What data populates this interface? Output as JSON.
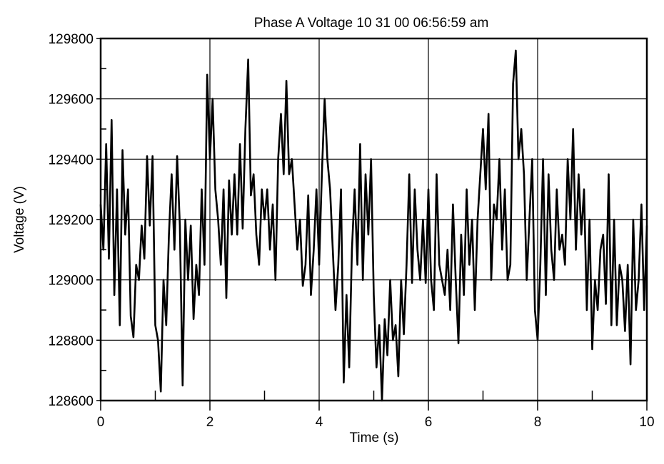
{
  "chart_data": {
    "type": "line",
    "title": "Phase A Voltage 10 31 00 06:56:59 am",
    "xlabel": "Time (s)",
    "ylabel": "Voltage (V)",
    "xlim": [
      0,
      10
    ],
    "ylim": [
      128600,
      129800
    ],
    "xticks": [
      0,
      2,
      4,
      6,
      8,
      10
    ],
    "xtick_labels": [
      "0",
      "2",
      "4",
      "6",
      "8",
      "10"
    ],
    "yticks": [
      128600,
      128800,
      129000,
      129200,
      129400,
      129600,
      129800
    ],
    "ytick_labels": [
      "128600",
      "128800",
      "129000",
      "129200",
      "129400",
      "129600",
      "129800"
    ],
    "grid": true,
    "line_color": "#000000",
    "x_step": 0.05,
    "series": [
      {
        "name": "Phase A Voltage",
        "values": [
          129250,
          129100,
          129450,
          129070,
          129530,
          128950,
          129300,
          128850,
          129430,
          129150,
          129300,
          128880,
          128810,
          129050,
          129000,
          129180,
          129070,
          129410,
          129180,
          129410,
          128850,
          128800,
          128630,
          129000,
          128850,
          129150,
          129350,
          129100,
          129410,
          129180,
          128650,
          129200,
          129000,
          129180,
          128870,
          129050,
          128950,
          129300,
          129050,
          129680,
          129400,
          129600,
          129300,
          129200,
          129050,
          129300,
          128940,
          129330,
          129150,
          129350,
          129150,
          129450,
          129170,
          129500,
          129730,
          129280,
          129350,
          129150,
          129050,
          129300,
          129200,
          129300,
          129100,
          129250,
          129000,
          129400,
          129550,
          129350,
          129660,
          129350,
          129400,
          129250,
          129100,
          129200,
          128980,
          129050,
          129280,
          128950,
          129100,
          129300,
          129050,
          129350,
          129600,
          129400,
          129300,
          129100,
          128900,
          129050,
          129300,
          128660,
          128950,
          128710,
          129100,
          129300,
          129050,
          129450,
          129000,
          129350,
          129150,
          129400,
          128950,
          128710,
          128850,
          128600,
          128870,
          128750,
          129000,
          128800,
          128850,
          128680,
          129000,
          128820,
          129050,
          129350,
          128990,
          129300,
          129100,
          129000,
          129200,
          128990,
          129300,
          129000,
          128900,
          129350,
          129050,
          129000,
          128950,
          129100,
          128900,
          129250,
          129000,
          128790,
          129150,
          128950,
          129300,
          129050,
          129200,
          128900,
          129200,
          129350,
          129500,
          129300,
          129550,
          129000,
          129250,
          129200,
          129400,
          129100,
          129300,
          129000,
          129050,
          129650,
          129760,
          129400,
          129500,
          129350,
          129000,
          129200,
          129400,
          128900,
          128800,
          129050,
          129400,
          128950,
          129350,
          129100,
          129000,
          129300,
          129100,
          129150,
          129050,
          129400,
          129200,
          129500,
          129100,
          129350,
          129150,
          129300,
          128900,
          129200,
          128770,
          129000,
          128900,
          129100,
          129150,
          128920,
          129350,
          128850,
          129200,
          128850,
          129050,
          129000,
          128830,
          129050,
          128720,
          129200,
          128900,
          129000,
          129250,
          128900,
          129180
        ]
      }
    ]
  }
}
